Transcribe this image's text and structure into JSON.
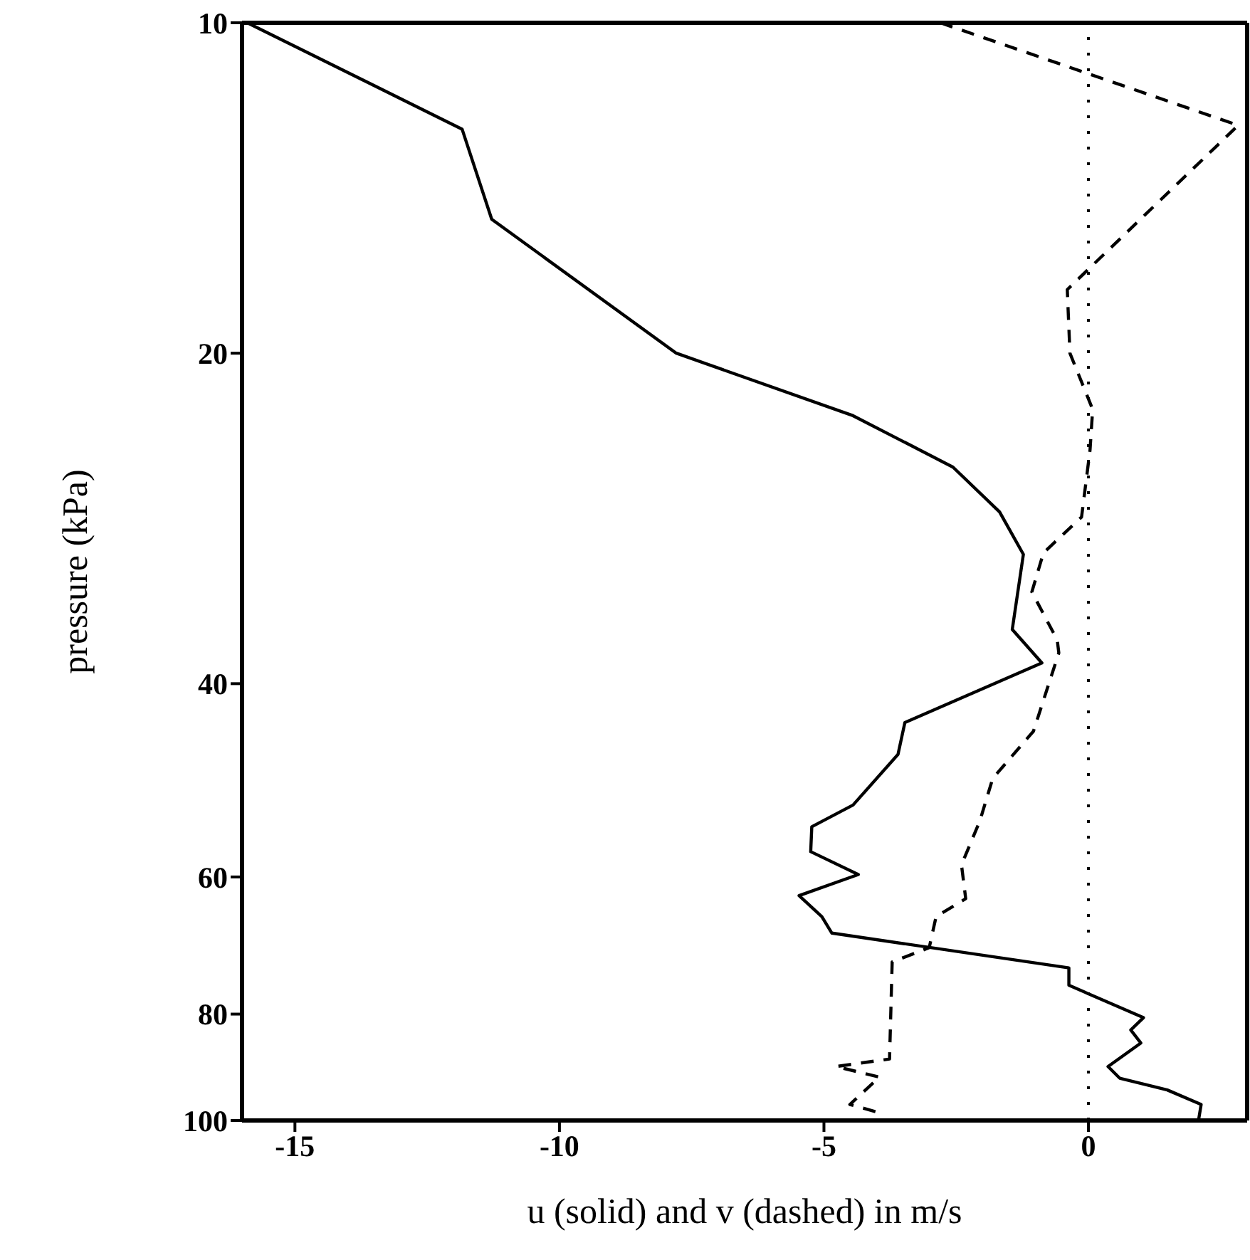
{
  "chart_data": {
    "type": "line",
    "xlabel": "u (solid) and v (dashed) in m/s",
    "ylabel": "pressure (kPa)",
    "xlim": [
      -16,
      3
    ],
    "xticks": [
      -15,
      -10,
      -5,
      0
    ],
    "ylim": [
      100,
      10
    ],
    "yticks": [
      10,
      20,
      40,
      60,
      80,
      100
    ],
    "log": "y",
    "marker": "none",
    "ref_lines": [
      {
        "axis": "x",
        "value": 0,
        "line_style": "dotted",
        "color": "#000000"
      }
    ],
    "series": [
      {
        "color": "#000000",
        "line_style": "solid",
        "x": [
          -15.9,
          -11.84,
          -11.28,
          -7.79,
          -4.45,
          -2.56,
          -1.68,
          -1.23,
          -1.44,
          -0.88,
          -3.47,
          -3.6,
          -4.45,
          -5.23,
          -5.25,
          -4.35,
          -5.47,
          -5.04,
          -4.85,
          -0.37,
          -0.37,
          1.04,
          0.8,
          0.99,
          0.37,
          0.59,
          1.49,
          2.13,
          2.08
        ],
        "values": [
          10,
          12.5,
          15.1,
          20,
          22.8,
          25.4,
          27.9,
          30.5,
          35.7,
          38.3,
          43.4,
          46.4,
          51.6,
          54,
          56.9,
          59.7,
          62.4,
          65.2,
          67.5,
          72.6,
          75.3,
          80.6,
          82.7,
          85,
          89.3,
          91.5,
          93.8,
          96.7,
          100
        ]
      },
      {
        "color": "#000000",
        "line_style": "dashed",
        "x": [
          -2.8,
          2.83,
          -0.4,
          -0.35,
          0.08,
          0.03,
          -0.13,
          -0.85,
          -1.07,
          -0.59,
          -0.56,
          -1.04,
          -1.81,
          -2.05,
          -2.4,
          -2.32,
          -2.88,
          -3.01,
          -3.71,
          -3.76,
          -4.77,
          -3.95,
          -4.51,
          -3.95
        ],
        "values": [
          10,
          12.4,
          17.5,
          20,
          22.5,
          24.5,
          28.2,
          30.4,
          33,
          36.5,
          37.5,
          44.2,
          48.8,
          53.3,
          58.5,
          62.8,
          65.2,
          69.6,
          71.7,
          87.9,
          89.3,
          91.3,
          96.7,
          98.4
        ]
      }
    ]
  }
}
